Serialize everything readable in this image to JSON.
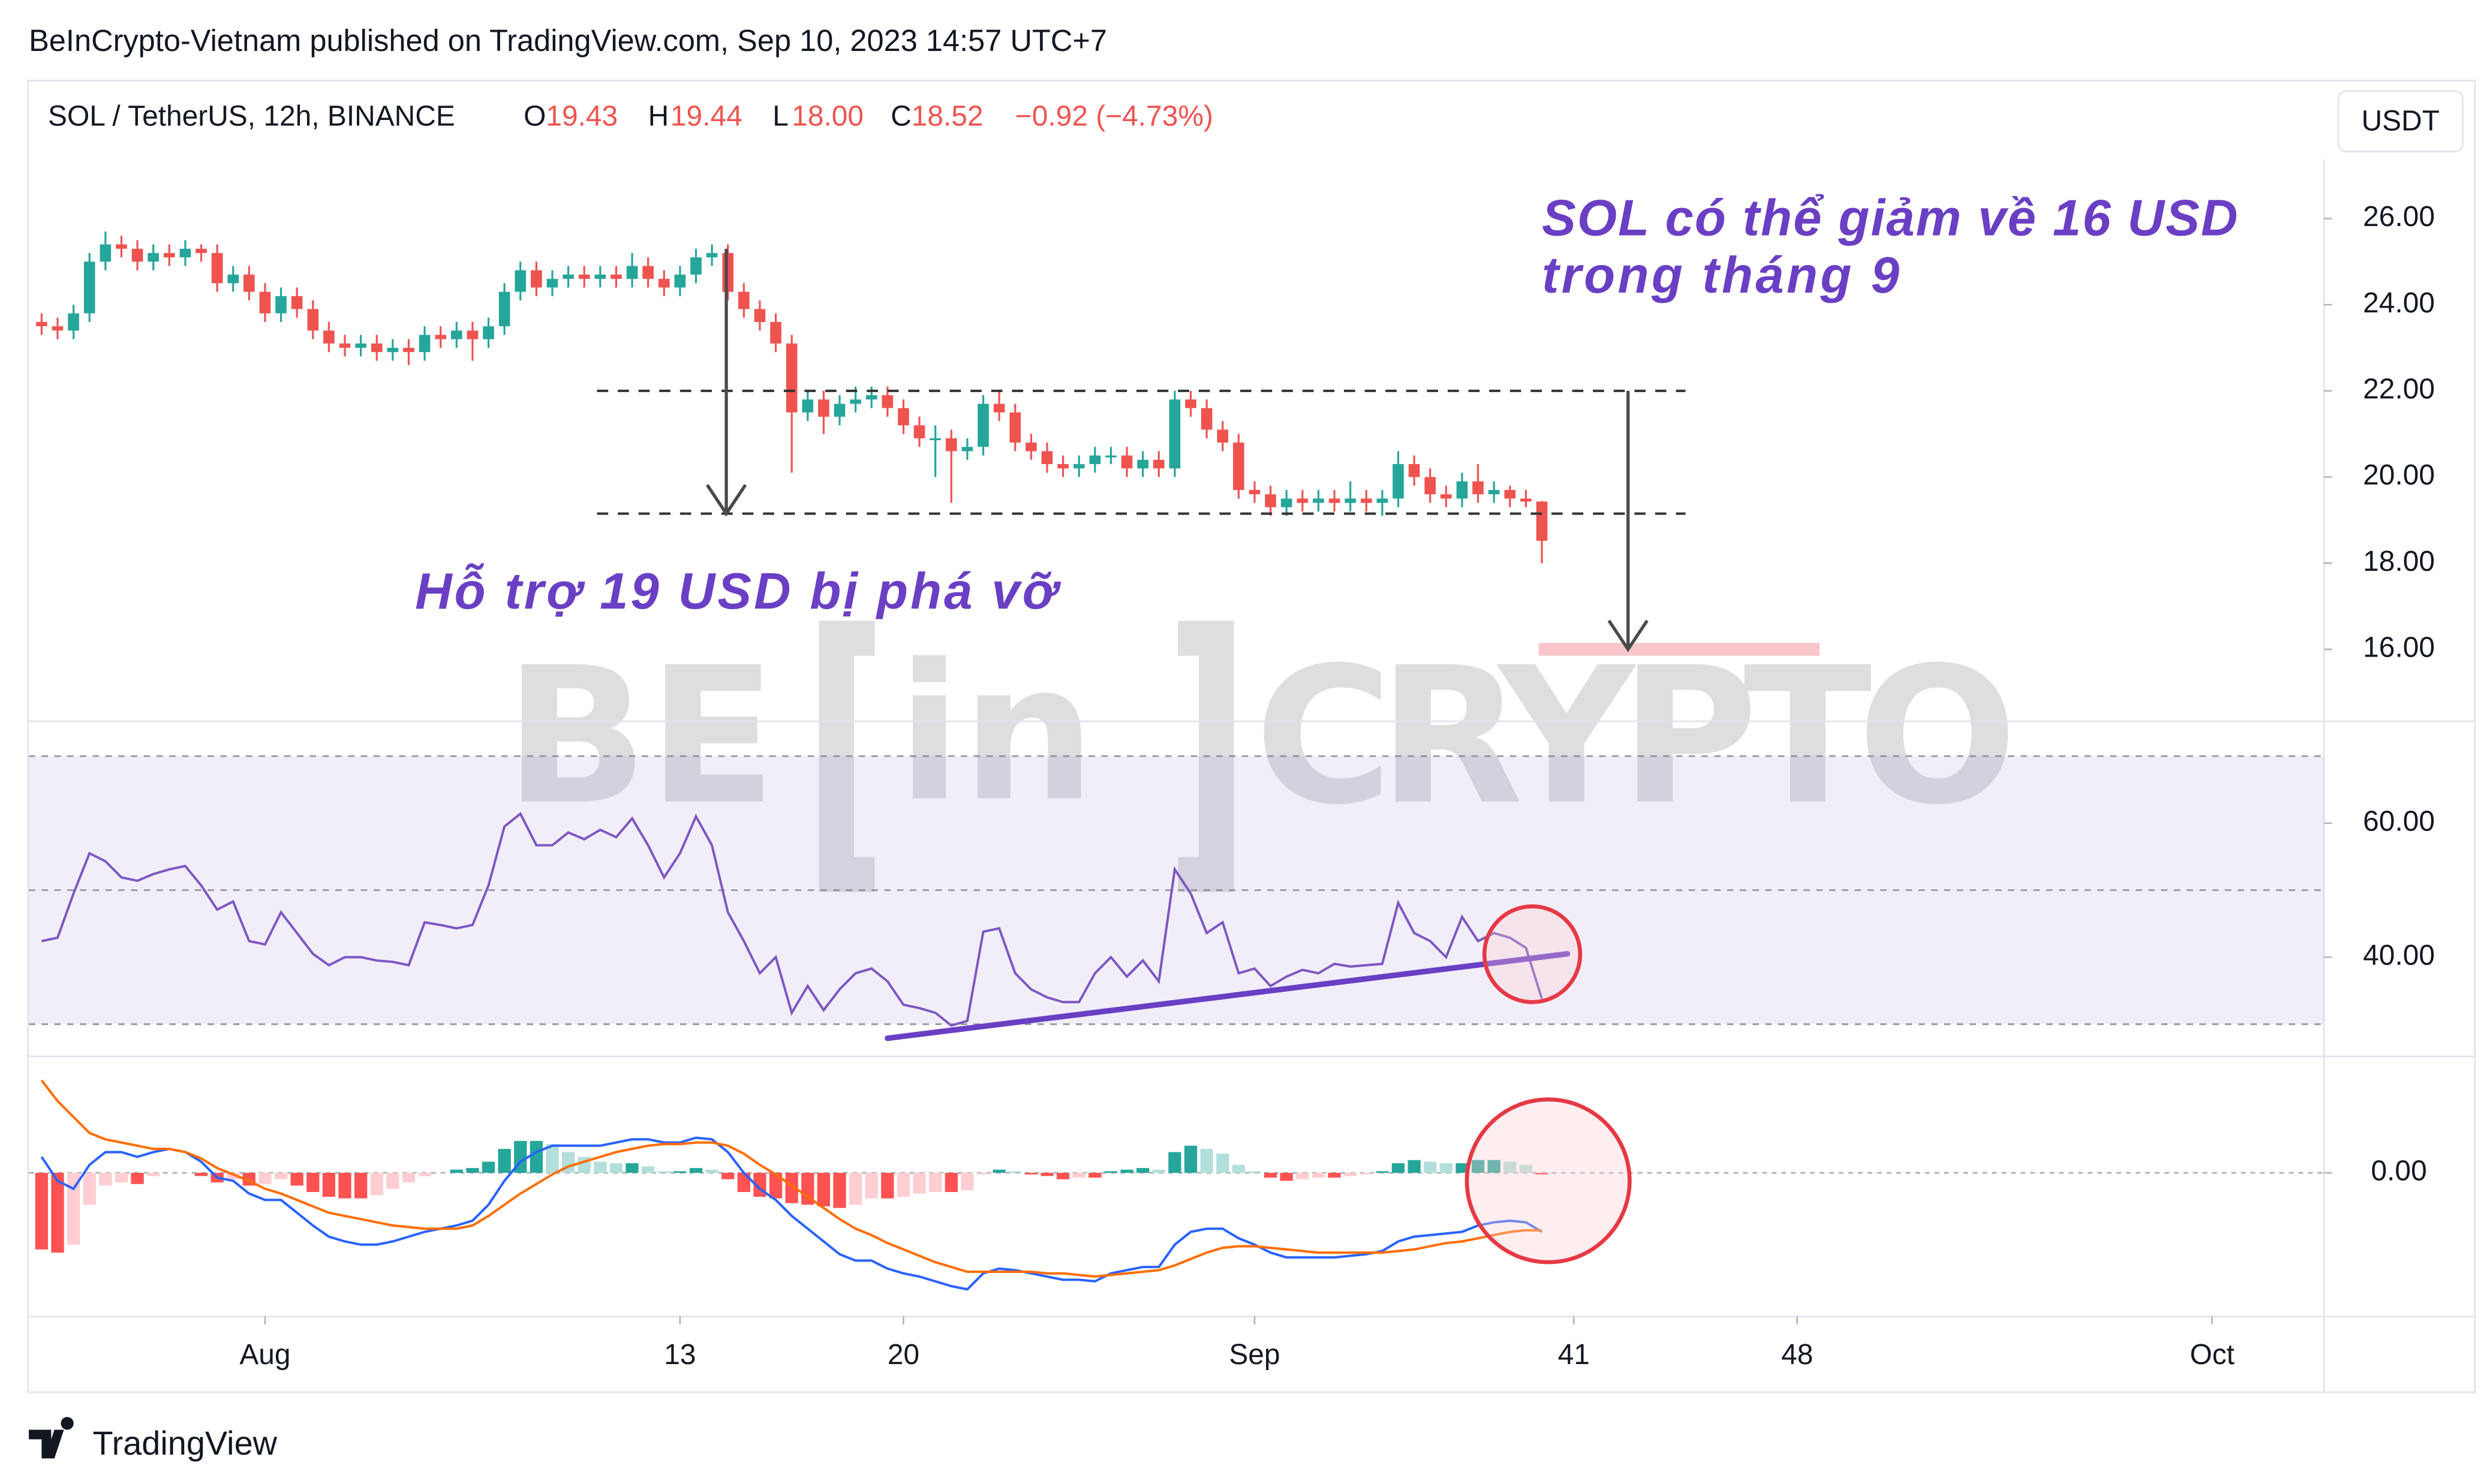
{
  "header": "BeInCrypto-Vietnam published on TradingView.com, Sep 10, 2023 14:57 UTC+7",
  "legend": {
    "symbol": "SOL / TetherUS, 12h, BINANCE",
    "items": [
      {
        "key": "O",
        "value": "19.43"
      },
      {
        "key": "H",
        "value": "19.44"
      },
      {
        "key": "L",
        "value": "18.00"
      },
      {
        "key": "C",
        "value": "18.52"
      }
    ],
    "change": "−0.92 (−4.73%)"
  },
  "currency_button": "USDT",
  "annotations": {
    "forecast": [
      "SOL có thể giảm về 16 USD",
      "trong tháng 9"
    ],
    "support": "Hỗ trợ 19 USD bị phá vỡ"
  },
  "watermark": {
    "left": "BE",
    "middle": "in",
    "right": "CRYPTO"
  },
  "brand": "TradingView",
  "chart_data": {
    "type": "candlestick",
    "up_color": "#26a69a",
    "down_color": "#ef5350",
    "x": [
      -7,
      -6.5,
      -6,
      -5.5,
      -5,
      -4.5,
      -4,
      -3.5,
      -3,
      -2.5,
      -2,
      -1.5,
      -1,
      -0.5,
      0,
      0.5,
      1,
      1.5,
      2,
      2.5,
      3,
      3.5,
      4,
      4.5,
      5,
      5.5,
      6,
      6.5,
      7,
      7.5,
      8,
      8.5,
      9,
      9.5,
      10,
      10.5,
      11,
      11.5,
      12,
      12.5,
      13,
      13.5,
      14,
      14.5,
      15,
      15.5,
      16,
      16.5,
      17,
      17.5,
      18,
      18.5,
      19,
      19.5,
      20,
      20.5,
      21,
      21.5,
      22,
      22.5,
      23,
      23.5,
      24,
      24.5,
      25,
      25.5,
      26,
      26.5,
      27,
      27.5,
      28,
      28.5,
      29,
      29.5,
      30,
      30.5,
      31,
      31.5,
      32,
      32.5,
      33,
      33.5,
      34,
      34.5,
      35,
      35.5,
      36,
      36.5,
      37,
      37.5,
      38,
      38.5,
      39,
      39.5,
      40
    ],
    "ohlc": [
      [
        23.6,
        23.8,
        23.3,
        23.5
      ],
      [
        23.5,
        23.7,
        23.2,
        23.4
      ],
      [
        23.4,
        24.0,
        23.2,
        23.8
      ],
      [
        23.8,
        25.2,
        23.6,
        25.0
      ],
      [
        25.0,
        25.7,
        24.8,
        25.4
      ],
      [
        25.4,
        25.6,
        25.1,
        25.3
      ],
      [
        25.3,
        25.5,
        24.8,
        25.0
      ],
      [
        25.0,
        25.4,
        24.8,
        25.2
      ],
      [
        25.2,
        25.4,
        24.9,
        25.1
      ],
      [
        25.1,
        25.5,
        24.9,
        25.3
      ],
      [
        25.3,
        25.4,
        25.0,
        25.2
      ],
      [
        25.2,
        25.4,
        24.3,
        24.5
      ],
      [
        24.5,
        24.9,
        24.3,
        24.7
      ],
      [
        24.7,
        24.9,
        24.1,
        24.3
      ],
      [
        24.3,
        24.5,
        23.6,
        23.8
      ],
      [
        23.8,
        24.4,
        23.6,
        24.2
      ],
      [
        24.2,
        24.4,
        23.7,
        23.9
      ],
      [
        23.9,
        24.1,
        23.2,
        23.4
      ],
      [
        23.4,
        23.6,
        22.9,
        23.1
      ],
      [
        23.1,
        23.3,
        22.8,
        23.0
      ],
      [
        23.0,
        23.3,
        22.8,
        23.1
      ],
      [
        23.1,
        23.3,
        22.7,
        22.9
      ],
      [
        22.9,
        23.2,
        22.7,
        23.0
      ],
      [
        23.0,
        23.2,
        22.6,
        22.9
      ],
      [
        22.9,
        23.5,
        22.7,
        23.3
      ],
      [
        23.3,
        23.5,
        23.0,
        23.2
      ],
      [
        23.2,
        23.6,
        23.0,
        23.4
      ],
      [
        23.4,
        23.6,
        22.7,
        23.2
      ],
      [
        23.2,
        23.7,
        23.0,
        23.5
      ],
      [
        23.5,
        24.5,
        23.3,
        24.3
      ],
      [
        24.3,
        25.0,
        24.1,
        24.8
      ],
      [
        24.8,
        25.0,
        24.2,
        24.4
      ],
      [
        24.4,
        24.8,
        24.2,
        24.6
      ],
      [
        24.6,
        24.9,
        24.4,
        24.7
      ],
      [
        24.7,
        24.9,
        24.4,
        24.6
      ],
      [
        24.6,
        24.9,
        24.4,
        24.7
      ],
      [
        24.7,
        24.9,
        24.4,
        24.6
      ],
      [
        24.6,
        25.2,
        24.4,
        24.9
      ],
      [
        24.9,
        25.1,
        24.4,
        24.6
      ],
      [
        24.6,
        24.8,
        24.2,
        24.4
      ],
      [
        24.4,
        24.9,
        24.2,
        24.7
      ],
      [
        24.7,
        25.3,
        24.5,
        25.1
      ],
      [
        25.1,
        25.4,
        24.9,
        25.2
      ],
      [
        25.2,
        25.4,
        24.1,
        24.3
      ],
      [
        24.3,
        24.5,
        23.7,
        23.9
      ],
      [
        23.9,
        24.1,
        23.4,
        23.6
      ],
      [
        23.6,
        23.8,
        22.9,
        23.1
      ],
      [
        23.1,
        23.3,
        20.1,
        21.5
      ],
      [
        21.5,
        22.0,
        21.3,
        21.8
      ],
      [
        21.8,
        22.0,
        21.0,
        21.4
      ],
      [
        21.4,
        21.9,
        21.2,
        21.7
      ],
      [
        21.7,
        22.1,
        21.5,
        21.8
      ],
      [
        21.8,
        22.1,
        21.6,
        21.9
      ],
      [
        21.9,
        22.1,
        21.4,
        21.6
      ],
      [
        21.6,
        21.8,
        21.0,
        21.2
      ],
      [
        21.2,
        21.4,
        20.7,
        20.9
      ],
      [
        20.9,
        21.2,
        20.0,
        20.9
      ],
      [
        20.9,
        21.1,
        19.4,
        20.6
      ],
      [
        20.6,
        20.9,
        20.4,
        20.7
      ],
      [
        20.7,
        21.9,
        20.5,
        21.7
      ],
      [
        21.7,
        22.0,
        21.3,
        21.5
      ],
      [
        21.5,
        21.7,
        20.6,
        20.8
      ],
      [
        20.8,
        21.0,
        20.4,
        20.6
      ],
      [
        20.6,
        20.8,
        20.1,
        20.3
      ],
      [
        20.3,
        20.5,
        20.0,
        20.2
      ],
      [
        20.2,
        20.5,
        20.0,
        20.3
      ],
      [
        20.3,
        20.7,
        20.1,
        20.5
      ],
      [
        20.5,
        20.7,
        20.3,
        20.5
      ],
      [
        20.5,
        20.7,
        20.0,
        20.2
      ],
      [
        20.2,
        20.6,
        20.0,
        20.4
      ],
      [
        20.4,
        20.6,
        20.0,
        20.2
      ],
      [
        20.2,
        22.0,
        20.0,
        21.8
      ],
      [
        21.8,
        22.0,
        21.4,
        21.6
      ],
      [
        21.6,
        21.8,
        20.9,
        21.1
      ],
      [
        21.1,
        21.3,
        20.6,
        20.8
      ],
      [
        20.8,
        21.0,
        19.5,
        19.7
      ],
      [
        19.7,
        19.9,
        19.4,
        19.6
      ],
      [
        19.6,
        19.8,
        19.1,
        19.3
      ],
      [
        19.3,
        19.7,
        19.1,
        19.5
      ],
      [
        19.5,
        19.7,
        19.2,
        19.4
      ],
      [
        19.4,
        19.7,
        19.2,
        19.5
      ],
      [
        19.5,
        19.7,
        19.2,
        19.4
      ],
      [
        19.4,
        19.9,
        19.2,
        19.5
      ],
      [
        19.5,
        19.7,
        19.2,
        19.4
      ],
      [
        19.4,
        19.7,
        19.1,
        19.5
      ],
      [
        19.5,
        20.6,
        19.3,
        20.3
      ],
      [
        20.3,
        20.5,
        19.8,
        20.0
      ],
      [
        20.0,
        20.2,
        19.4,
        19.6
      ],
      [
        19.6,
        19.8,
        19.3,
        19.5
      ],
      [
        19.5,
        20.1,
        19.3,
        19.9
      ],
      [
        19.9,
        20.3,
        19.4,
        19.6
      ],
      [
        19.6,
        19.9,
        19.4,
        19.7
      ],
      [
        19.7,
        19.8,
        19.3,
        19.5
      ],
      [
        19.5,
        19.7,
        19.3,
        19.43
      ],
      [
        19.43,
        19.44,
        18.0,
        18.52
      ]
    ],
    "xlim": [
      -7.4,
      64.5
    ],
    "xticks": [
      {
        "value": 0,
        "label": "Aug"
      },
      13,
      20,
      {
        "value": 31,
        "label": "Sep"
      },
      41,
      48,
      {
        "value": 61,
        "label": "Oct"
      }
    ],
    "ylim": [
      14.33,
      27.37
    ],
    "yticks": [
      {
        "value": 16,
        "label": "16.00"
      },
      {
        "value": 18,
        "label": "18.00"
      },
      {
        "value": 20,
        "label": "20.00"
      },
      {
        "value": 22,
        "label": "22.00"
      },
      {
        "value": 24,
        "label": "24.00"
      },
      {
        "value": 26,
        "label": "26.00"
      }
    ],
    "levels": {
      "values": [
        22.0,
        19.15
      ],
      "x": [
        10.4,
        44.5
      ],
      "color": "#333333"
    },
    "target": {
      "value": 16,
      "x": [
        39.9,
        48.7
      ],
      "color": "#f7c5ca"
    },
    "arrows": [
      {
        "x": 14.45,
        "from": 25.3,
        "to": 19.15
      },
      {
        "x": 42.7,
        "from": 22.0,
        "to": 16.0
      }
    ],
    "panes": [
      {
        "type": "line",
        "color": "#7e57c2",
        "values": [
          42.4,
          42.9,
          49.5,
          55.5,
          54.3,
          51.9,
          51.4,
          52.4,
          53.1,
          53.6,
          50.7,
          47.1,
          48.3,
          42.4,
          41.9,
          46.7,
          43.6,
          40.5,
          38.8,
          40,
          40,
          39.5,
          39.3,
          38.8,
          45.2,
          44.8,
          44.3,
          44.8,
          50.7,
          59.5,
          61.4,
          56.7,
          56.7,
          58.6,
          57.6,
          59.0,
          57.9,
          60.7,
          56.7,
          51.9,
          55.5,
          61.0,
          56.7,
          46.7,
          42.4,
          37.6,
          40,
          31.7,
          35.7,
          32.1,
          35.2,
          37.6,
          38.3,
          36.4,
          32.9,
          32.4,
          31.7,
          29.8,
          30.5,
          43.8,
          44.3,
          37.6,
          35.2,
          34.0,
          33.3,
          33.3,
          37.6,
          40,
          37.1,
          39.5,
          36.4,
          53.1,
          49.5,
          43.6,
          45.2,
          37.6,
          38.3,
          35.7,
          37.1,
          38.1,
          37.6,
          39.0,
          38.6,
          38.8,
          39.0,
          48.1,
          43.6,
          42.4,
          40,
          46.0,
          42.4,
          43.6,
          42.9,
          41.4,
          33.8
        ],
        "ylim": [
          25.2,
          75.2
        ],
        "yticks": [
          {
            "value": 40,
            "label": "40.00"
          },
          {
            "value": 60,
            "label": "60.00"
          }
        ],
        "bands": [
          30,
          50,
          70
        ],
        "band_color": "#7e57c2",
        "trendline": {
          "x": [
            19.5,
            40.8
          ],
          "y": [
            27.9,
            40.5
          ],
          "color": "#6a3fc4"
        }
      },
      {
        "type": "macd",
        "series": [
          {
            "color": "#2962ff",
            "values": [
              0.1,
              -0.05,
              -0.1,
              0.05,
              0.13,
              0.13,
              0.1,
              0.13,
              0.15,
              0.13,
              0.07,
              -0.03,
              -0.05,
              -0.13,
              -0.17,
              -0.17,
              -0.25,
              -0.33,
              -0.4,
              -0.43,
              -0.45,
              -0.45,
              -0.43,
              -0.4,
              -0.37,
              -0.35,
              -0.33,
              -0.3,
              -0.2,
              -0.05,
              0.07,
              0.13,
              0.17,
              0.17,
              0.17,
              0.17,
              0.19,
              0.21,
              0.21,
              0.19,
              0.19,
              0.22,
              0.21,
              0.13,
              0,
              -0.1,
              -0.17,
              -0.27,
              -0.35,
              -0.43,
              -0.51,
              -0.55,
              -0.55,
              -0.6,
              -0.63,
              -0.65,
              -0.68,
              -0.71,
              -0.73,
              -0.63,
              -0.6,
              -0.61,
              -0.63,
              -0.65,
              -0.67,
              -0.67,
              -0.68,
              -0.63,
              -0.61,
              -0.59,
              -0.59,
              -0.45,
              -0.37,
              -0.35,
              -0.35,
              -0.41,
              -0.45,
              -0.5,
              -0.53,
              -0.53,
              -0.53,
              -0.53,
              -0.52,
              -0.51,
              -0.49,
              -0.43,
              -0.4,
              -0.39,
              -0.38,
              -0.37,
              -0.33,
              -0.31,
              -0.3,
              -0.31,
              -0.37
            ]
          },
          {
            "color": "#ff6d00",
            "values": [
              0.58,
              0.45,
              0.35,
              0.25,
              0.21,
              0.19,
              0.17,
              0.15,
              0.15,
              0.13,
              0.09,
              0.03,
              -0.01,
              -0.05,
              -0.1,
              -0.13,
              -0.17,
              -0.21,
              -0.25,
              -0.27,
              -0.29,
              -0.31,
              -0.33,
              -0.34,
              -0.35,
              -0.35,
              -0.35,
              -0.33,
              -0.27,
              -0.2,
              -0.13,
              -0.07,
              -0.01,
              0.04,
              0.07,
              0.1,
              0.13,
              0.15,
              0.17,
              0.18,
              0.18,
              0.19,
              0.19,
              0.17,
              0.12,
              0.05,
              -0.01,
              -0.08,
              -0.15,
              -0.22,
              -0.29,
              -0.35,
              -0.39,
              -0.44,
              -0.48,
              -0.52,
              -0.56,
              -0.59,
              -0.62,
              -0.62,
              -0.62,
              -0.62,
              -0.62,
              -0.63,
              -0.63,
              -0.64,
              -0.65,
              -0.64,
              -0.63,
              -0.62,
              -0.61,
              -0.58,
              -0.54,
              -0.5,
              -0.47,
              -0.46,
              -0.46,
              -0.47,
              -0.48,
              -0.49,
              -0.5,
              -0.5,
              -0.5,
              -0.5,
              -0.5,
              -0.49,
              -0.48,
              -0.46,
              -0.44,
              -0.43,
              -0.41,
              -0.39,
              -0.37,
              -0.36,
              -0.36
            ]
          }
        ],
        "histogram": {
          "colors": [
            "#26a69a",
            "#b2dfdb",
            "#ff5252",
            "#ffcdd2"
          ],
          "values": [
            -0.48,
            -0.5,
            -0.45,
            -0.2,
            -0.08,
            -0.06,
            -0.07,
            -0.02,
            0.0,
            0.0,
            -0.02,
            -0.06,
            -0.04,
            -0.08,
            -0.07,
            -0.04,
            -0.08,
            -0.12,
            -0.15,
            -0.16,
            -0.16,
            -0.14,
            -0.1,
            -0.06,
            -0.02,
            0.0,
            0.02,
            0.03,
            0.07,
            0.15,
            0.2,
            0.2,
            0.18,
            0.13,
            0.1,
            0.07,
            0.06,
            0.06,
            0.04,
            0.01,
            0.01,
            0.03,
            0.02,
            -0.04,
            -0.12,
            -0.15,
            -0.16,
            -0.19,
            -0.2,
            -0.21,
            -0.22,
            -0.2,
            -0.16,
            -0.16,
            -0.15,
            -0.13,
            -0.12,
            -0.12,
            -0.11,
            -0.01,
            0.02,
            0.01,
            -0.01,
            -0.02,
            -0.04,
            -0.03,
            -0.03,
            0.01,
            0.02,
            0.03,
            0.02,
            0.13,
            0.17,
            0.15,
            0.12,
            0.05,
            0.01,
            -0.03,
            -0.05,
            -0.04,
            -0.03,
            -0.03,
            -0.02,
            -0.01,
            0.01,
            0.06,
            0.08,
            0.07,
            0.06,
            0.06,
            0.08,
            0.08,
            0.07,
            0.05,
            -0.01
          ]
        },
        "ylim": [
          -0.9,
          0.73
        ],
        "yticks": [
          {
            "value": 0,
            "label": "0.00"
          }
        ]
      }
    ]
  }
}
